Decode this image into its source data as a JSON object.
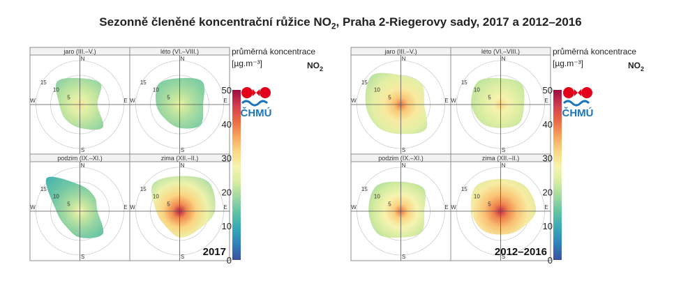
{
  "title_main": "Sezonně členěné koncentrační růžice NO",
  "title_sub": "2",
  "title_rest": ", Praha 2-Riegerovy sady, 2017 a 2012–2016",
  "colors": [
    "#3d4fa0",
    "#2f7fb8",
    "#36a7b8",
    "#5cc0a4",
    "#9ad7a2",
    "#d6ec9e",
    "#f6f4b0",
    "#fbd784",
    "#f7a45c",
    "#ea6a43",
    "#d23e4e",
    "#9b0c42"
  ],
  "chart_data": [
    {
      "type": "heatmap",
      "subtype": "polar concentration rose",
      "period": "2017",
      "legend_title": "průměrná koncentrace",
      "legend_unit": "[µg.m⁻³]",
      "pollutant": "NO",
      "pollutant_sub": "2",
      "logo": "ČHMÚ",
      "color_scale": {
        "min": 0,
        "max": 50,
        "ticks": [
          0,
          10,
          20,
          30,
          40,
          50
        ]
      },
      "radial_ticks": [
        "5",
        "10",
        "15"
      ],
      "compass": [
        "N",
        "E",
        "S",
        "W"
      ],
      "panels": [
        {
          "label": "jaro (III.–V.)",
          "center_value": 30,
          "edge_value": 14,
          "extent": [
            9,
            10,
            6,
            11,
            8,
            7,
            7,
            11
          ]
        },
        {
          "label": "léto (VI.–VIII.)",
          "center_value": 26,
          "edge_value": 13,
          "extent": [
            9,
            11,
            8,
            10,
            8,
            7,
            8,
            10
          ]
        },
        {
          "label": "podzim (IX.–XI.)",
          "center_value": 27,
          "edge_value": 11,
          "extent": [
            9,
            7,
            6,
            11,
            9,
            7,
            8,
            16
          ]
        },
        {
          "label": "zima (XII.–II.)",
          "center_value": 48,
          "edge_value": 18,
          "extent": [
            12,
            14,
            12,
            9,
            9,
            7,
            8,
            13
          ]
        }
      ]
    },
    {
      "type": "heatmap",
      "subtype": "polar concentration rose",
      "period": "2012–2016",
      "legend_title": "průměrná koncentrace",
      "legend_unit": "[µg.m⁻³]",
      "pollutant": "NO",
      "pollutant_sub": "2",
      "logo": "ČHMÚ",
      "color_scale": {
        "min": 0,
        "max": 50,
        "ticks": [
          0,
          10,
          20,
          30,
          40,
          50
        ]
      },
      "radial_ticks": [
        "5",
        "10",
        "15"
      ],
      "compass": [
        "N",
        "E",
        "S",
        "W"
      ],
      "panels": [
        {
          "label": "jaro (III.–V.)",
          "center_value": 40,
          "edge_value": 19,
          "extent": [
            10,
            10,
            8,
            12,
            10,
            11,
            12,
            14
          ]
        },
        {
          "label": "léto (VI.–VIII.)",
          "center_value": 32,
          "edge_value": 18,
          "extent": [
            9,
            10,
            8,
            9,
            8,
            9,
            10,
            11
          ]
        },
        {
          "label": "podzim (IX.–XI.)",
          "center_value": 40,
          "edge_value": 16,
          "extent": [
            10,
            11,
            8,
            10,
            9,
            11,
            11,
            12
          ]
        },
        {
          "label": "zima (XII.–II.)",
          "center_value": 47,
          "edge_value": 22,
          "extent": [
            11,
            12,
            12,
            9,
            8,
            9,
            10,
            12
          ]
        }
      ]
    }
  ]
}
